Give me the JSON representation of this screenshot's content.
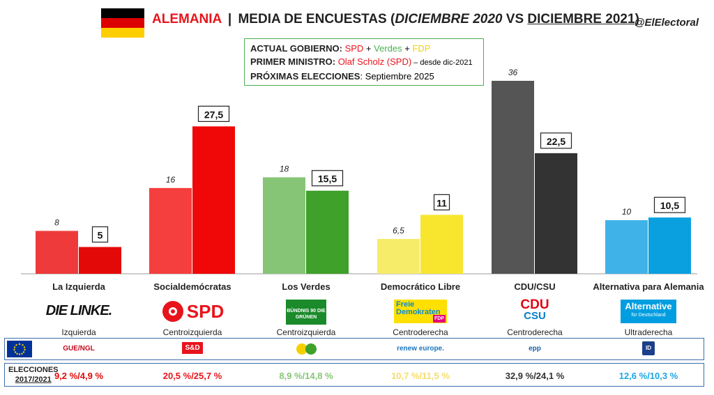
{
  "header": {
    "country": "ALEMANIA",
    "separator": "|",
    "title_pre": "MEDIA DE ENCUESTAS (",
    "period_old": "DICIEMBRE 2020",
    "title_vs": " VS ",
    "period_new": "DICIEMBRE 2021",
    "title_post": ")",
    "handle": "@ElElectoral",
    "flag_colors": [
      "#000000",
      "#dd0000",
      "#ffce00"
    ]
  },
  "info": {
    "gov_label": "ACTUAL GOBIERNO:",
    "gov_p1": "SPD",
    "gov_plus1": " + ",
    "gov_p2": "Verdes",
    "gov_plus2": " + ",
    "gov_p3": "FDP",
    "pm_label": "PRIMER MINISTRO:",
    "pm_name": "Olaf Scholz (SPD)",
    "pm_since": " – desde dic-2021",
    "next_label": "PRÓXIMAS ELECCIONES",
    "next_value": ": Septiembre 2025"
  },
  "chart_data": {
    "type": "bar",
    "title": "MEDIA DE ENCUESTAS (DICIEMBRE 2020 VS DICIEMBRE 2021)",
    "categories": [
      "La Izquierda",
      "Socialdemócratas",
      "Los Verdes",
      "Democrático Libre",
      "CDU/CSU",
      "Alternativa para Alemania"
    ],
    "series": [
      {
        "name": "DICIEMBRE 2020",
        "values": [
          8,
          16,
          18,
          6.5,
          36,
          10
        ],
        "labels": [
          "8",
          "16",
          "18",
          "6,5",
          "36",
          "10"
        ]
      },
      {
        "name": "DICIEMBRE 2021",
        "values": [
          5,
          27.5,
          15.5,
          11,
          22.5,
          10.5
        ],
        "labels": [
          "5",
          "27,5",
          "15,5",
          "11",
          "22,5",
          "10,5"
        ]
      }
    ],
    "colors_2020": [
      "#ee3a3a",
      "#f53e3e",
      "#86c576",
      "#f7ec6a",
      "#555555",
      "#3fb3e8"
    ],
    "colors_2021": [
      "#e40909",
      "#f00808",
      "#3fa02a",
      "#f8e62e",
      "#333333",
      "#0aa0e0"
    ],
    "ylim": [
      0,
      36
    ]
  },
  "parties": [
    {
      "name": "La Izquierda",
      "logo": "DIE LINKE.",
      "ideology": "Izquierda",
      "group": "GUE/NGL",
      "elections": "9,2 %/4,9 %",
      "color": "#e40909"
    },
    {
      "name": "Socialdemócratas",
      "logo": "SPD",
      "ideology": "Centroizquierda",
      "group": "S&D",
      "elections": "20,5 %/25,7 %",
      "color": "#e8141c"
    },
    {
      "name": "Los Verdes",
      "logo": "BÜNDNIS 90 DIE GRÜNEN",
      "ideology": "Centroizquierda",
      "group": "",
      "elections": "8,9 %/14,8 %",
      "color": "#86c576"
    },
    {
      "name": "Democrático Libre",
      "logo_line1": "Freie",
      "logo_line2": "Demokraten",
      "logo_line3": "FDP",
      "ideology": "Centroderecha",
      "group": "renew europe.",
      "elections": "10,7 %/11,5 %",
      "color": "#f7dc6a"
    },
    {
      "name": "CDU/CSU",
      "logo_line1": "CDU",
      "logo_line2": "CSU",
      "ideology": "Centroderecha",
      "group": "epp",
      "elections": "32,9 %/24,1 %",
      "color": "#333333"
    },
    {
      "name": "Alternativa para Alemania",
      "logo_line1": "Alternative",
      "logo_line2": "für Deutschland",
      "ideology": "Ultraderecha",
      "group": "ID",
      "elections": "12,6 %/10,3 %",
      "color": "#1ba6e5"
    }
  ],
  "elections_label_1": "ELECCIONES",
  "elections_label_2": "2017/2021"
}
